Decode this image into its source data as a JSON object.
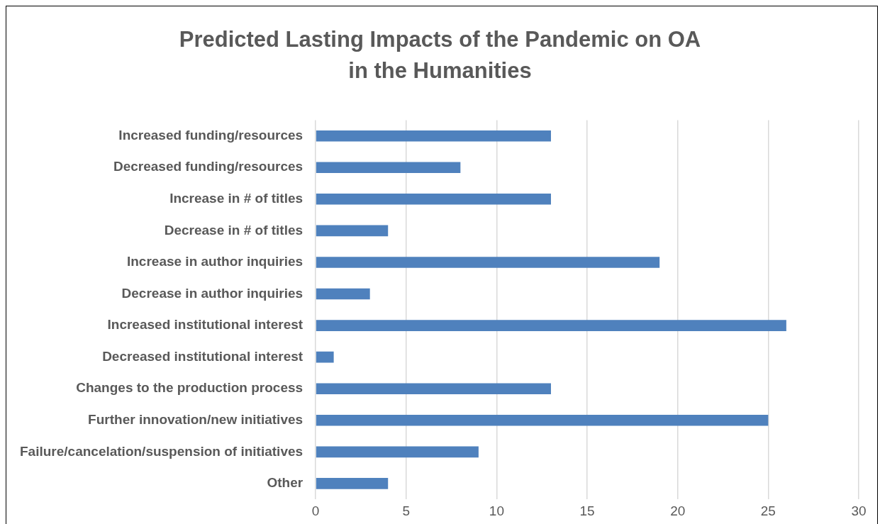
{
  "chart_data": {
    "type": "bar",
    "orientation": "horizontal",
    "title": "Predicted Lasting Impacts of the Pandemic on OA in the Humanities",
    "categories": [
      "Increased funding/resources",
      "Decreased funding/resources",
      "Increase in # of titles",
      "Decrease in # of titles",
      "Increase in author inquiries",
      "Decrease in author inquiries",
      "Increased institutional interest",
      "Decreased institutional interest",
      "Changes to the production process",
      "Further innovation/new initiatives",
      "Failure/cancelation/suspension of initiatives",
      "Other"
    ],
    "values": [
      13,
      8,
      13,
      4,
      19,
      3,
      26,
      1,
      13,
      25,
      9,
      4
    ],
    "color": "#4f81bd",
    "xlim": [
      0,
      30
    ],
    "xticks": [
      0,
      5,
      10,
      15,
      20,
      25,
      30
    ],
    "grid": "x",
    "legend": false
  }
}
